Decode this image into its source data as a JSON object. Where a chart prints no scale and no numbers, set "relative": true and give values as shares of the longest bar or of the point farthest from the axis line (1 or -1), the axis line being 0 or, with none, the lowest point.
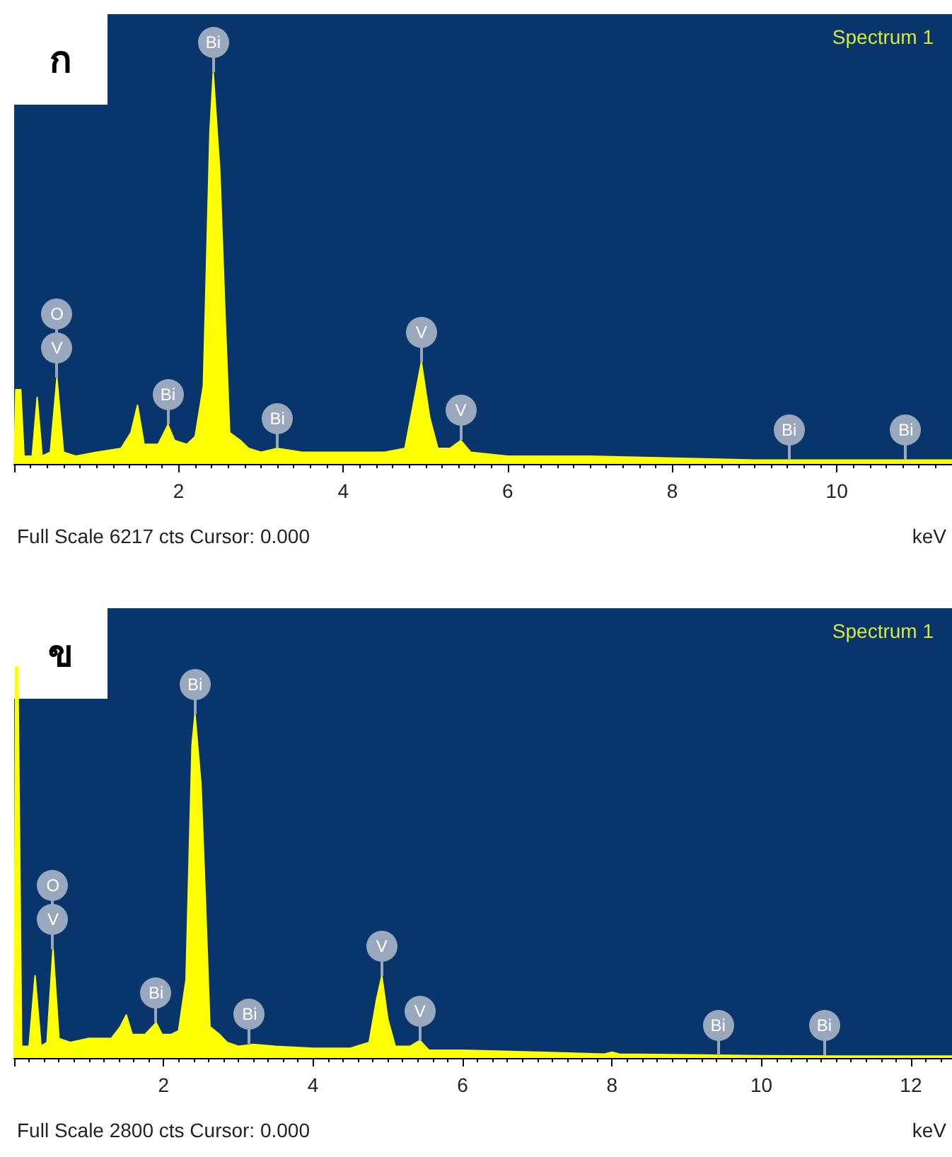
{
  "chart_data": [
    {
      "type": "area",
      "title": "Spectrum 1",
      "xlabel": "keV",
      "relative": true,
      "xlim": [
        0,
        11.4
      ],
      "xticks": [
        2,
        4,
        6,
        8,
        10
      ],
      "x": [
        0,
        0.02,
        0.08,
        0.12,
        0.22,
        0.28,
        0.34,
        0.44,
        0.52,
        0.6,
        0.75,
        1.0,
        1.3,
        1.42,
        1.5,
        1.58,
        1.75,
        1.87,
        1.95,
        2.1,
        2.2,
        2.3,
        2.38,
        2.42,
        2.5,
        2.56,
        2.62,
        2.75,
        2.85,
        3.0,
        3.2,
        3.5,
        4.0,
        4.5,
        4.75,
        4.85,
        4.95,
        5.05,
        5.15,
        5.3,
        5.43,
        5.55,
        6,
        7,
        8,
        9,
        10,
        11,
        11.4
      ],
      "series": [
        {
          "color": "#ffff00",
          "values": [
            0,
            0.19,
            0.19,
            0.02,
            0.02,
            0.17,
            0.02,
            0.03,
            0.22,
            0.03,
            0.02,
            0.03,
            0.04,
            0.08,
            0.15,
            0.05,
            0.05,
            0.1,
            0.06,
            0.05,
            0.07,
            0.2,
            0.85,
            1,
            0.75,
            0.4,
            0.08,
            0.06,
            0.04,
            0.03,
            0.04,
            0.03,
            0.03,
            0.03,
            0.04,
            0.15,
            0.26,
            0.12,
            0.04,
            0.04,
            0.06,
            0.03,
            0.02,
            0.02,
            0.015,
            0.01,
            0.01,
            0.01,
            0.01
          ]
        }
      ],
      "annotations": [
        "ก",
        "Full Scale 6217 cts Cursor: 0.000",
        {
          "text": "V",
          "x": 0.52,
          "y": 0.22
        },
        "O",
        {
          "text": "Bi",
          "x": 1.87,
          "y": 0.1
        },
        {
          "text": "Bi",
          "x": 2.42,
          "y": 1
        },
        {
          "text": "Bi",
          "x": 3.2,
          "y": 0.04
        },
        {
          "text": "V",
          "x": 4.95,
          "y": 0.26
        },
        {
          "text": "V",
          "x": 5.43,
          "y": 0.06
        },
        {
          "text": "Bi",
          "x": 9.42,
          "y": 0.01
        },
        {
          "text": "Bi",
          "x": 10.84,
          "y": 0.01
        }
      ]
    },
    {
      "type": "area",
      "title": "Spectrum 1",
      "xlabel": "keV",
      "relative": true,
      "xlim": [
        0,
        12.55
      ],
      "xticks": [
        2,
        4,
        6,
        8,
        10,
        12
      ],
      "x": [
        0,
        0.02,
        0.05,
        0.1,
        0.2,
        0.28,
        0.36,
        0.44,
        0.52,
        0.6,
        0.75,
        1.0,
        1.3,
        1.42,
        1.5,
        1.58,
        1.75,
        1.9,
        1.98,
        2.1,
        2.2,
        2.3,
        2.38,
        2.42,
        2.5,
        2.56,
        2.62,
        2.75,
        2.85,
        3.0,
        3.2,
        3.5,
        4.0,
        4.5,
        4.75,
        4.85,
        4.92,
        5.0,
        5.1,
        5.3,
        5.43,
        5.55,
        6,
        7,
        7.9,
        8.0,
        8.1,
        9,
        10,
        11,
        12,
        12.55
      ],
      "series": [
        {
          "color": "#ffff00",
          "values": [
            0,
            1,
            1,
            0.03,
            0.03,
            0.21,
            0.03,
            0.04,
            0.28,
            0.05,
            0.04,
            0.05,
            0.05,
            0.08,
            0.11,
            0.06,
            0.06,
            0.09,
            0.06,
            0.06,
            0.07,
            0.2,
            0.8,
            0.88,
            0.7,
            0.4,
            0.08,
            0.06,
            0.04,
            0.03,
            0.035,
            0.03,
            0.025,
            0.025,
            0.04,
            0.15,
            0.21,
            0.1,
            0.03,
            0.03,
            0.045,
            0.02,
            0.02,
            0.015,
            0.01,
            0.015,
            0.01,
            0.008,
            0.006,
            0.005,
            0.005,
            0.005
          ]
        }
      ],
      "annotations": [
        "ข",
        "Full Scale 2800 cts Cursor: 0.000",
        {
          "text": "V",
          "x": 0.52,
          "y": 0.28
        },
        "O",
        {
          "text": "Bi",
          "x": 1.9,
          "y": 0.09
        },
        {
          "text": "Bi",
          "x": 2.42,
          "y": 0.88
        },
        {
          "text": "Bi",
          "x": 3.15,
          "y": 0.035
        },
        {
          "text": "V",
          "x": 4.92,
          "y": 0.21
        },
        {
          "text": "V",
          "x": 5.43,
          "y": 0.045
        },
        {
          "text": "Bi",
          "x": 9.42,
          "y": 0.008
        },
        {
          "text": "Bi",
          "x": 10.84,
          "y": 0.006
        }
      ]
    }
  ]
}
